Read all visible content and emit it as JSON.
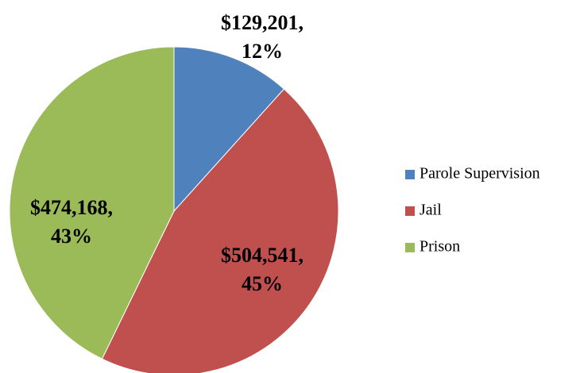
{
  "chart_data": {
    "type": "pie",
    "categories": [
      "Parole Supervision",
      "Jail",
      "Prison"
    ],
    "values": [
      129201,
      504541,
      474168
    ],
    "value_labels": [
      "$129,201,",
      "$504,541,",
      "$474,168,"
    ],
    "percentages": [
      {
        "value": 12,
        "label": "12%"
      },
      {
        "value": 45,
        "label": "45%"
      },
      {
        "value": 43,
        "label": "43%"
      }
    ],
    "colors": [
      "#4f81bd",
      "#c0504d",
      "#9bbb59"
    ],
    "legend": "right"
  }
}
